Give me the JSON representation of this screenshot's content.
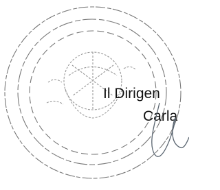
{
  "signature_block": {
    "role": "Il Dirigen",
    "name": "Carla"
  }
}
